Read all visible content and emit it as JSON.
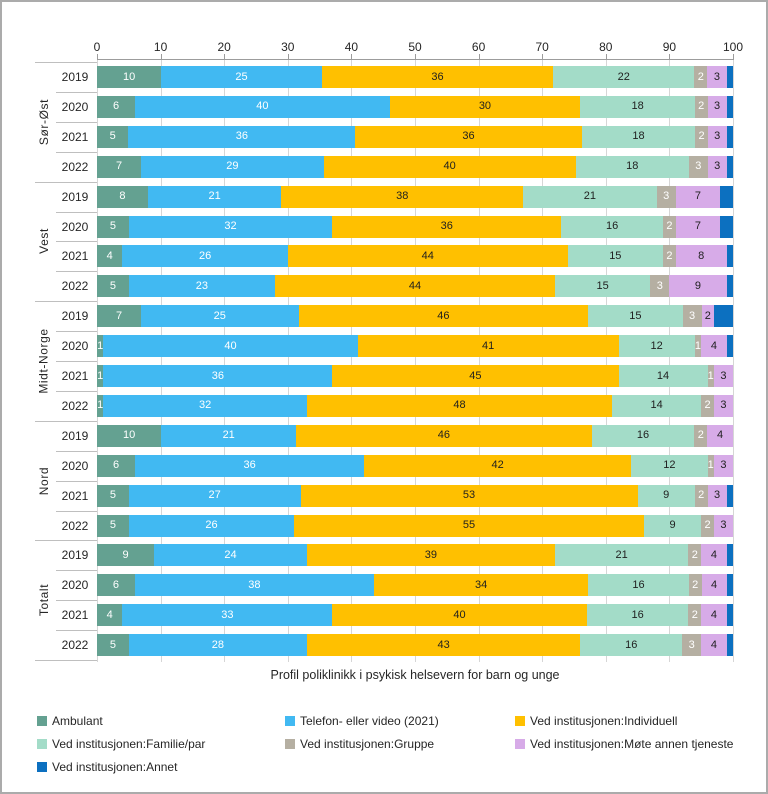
{
  "chart_data": {
    "type": "bar",
    "orientation": "horizontal-stacked",
    "title": "Profil poliklinikk i psykisk helsevern for barn og unge",
    "x_axis": {
      "min": 0,
      "max": 100,
      "step": 10,
      "ticks": [
        0,
        10,
        20,
        30,
        40,
        50,
        60,
        70,
        80,
        90,
        100
      ]
    },
    "grid": true,
    "legend_position": "bottom",
    "series": [
      {
        "name": "Ambulant",
        "color": "#64a191",
        "label_color": "#ffffff",
        "show_labels": true
      },
      {
        "name": "Telefon- eller video (2021)",
        "color": "#41b9f2",
        "label_color": "#ffffff",
        "show_labels": true
      },
      {
        "name": "Ved institusjonen:Individuell",
        "color": "#ffc000",
        "label_color": "#1f1f1f",
        "show_labels": true
      },
      {
        "name": "Ved institusjonen:Familie/par",
        "color": "#a3dcc8",
        "label_color": "#1f1f1f",
        "show_labels": true
      },
      {
        "name": "Ved institusjonen:Gruppe",
        "color": "#b5afa2",
        "label_color": "#ffffff",
        "show_labels": true
      },
      {
        "name": "Ved institusjonen:Møte annen tjeneste",
        "color": "#d7abe8",
        "label_color": "#1f1f1f",
        "show_labels": true
      },
      {
        "name": "Ved institusjonen:Annet",
        "color": "#0c70c0",
        "label_color": "#ffffff",
        "show_labels": false
      }
    ],
    "groups": [
      {
        "label": "Sør-Øst",
        "rows": [
          {
            "year": "2019",
            "values": [
              10,
              25,
              36,
              22,
              2,
              3,
              1
            ]
          },
          {
            "year": "2020",
            "values": [
              6,
              40,
              30,
              18,
              2,
              3,
              1
            ]
          },
          {
            "year": "2021",
            "values": [
              5,
              36,
              36,
              18,
              2,
              3,
              1
            ]
          },
          {
            "year": "2022",
            "values": [
              7,
              29,
              40,
              18,
              3,
              3,
              1
            ]
          }
        ]
      },
      {
        "label": "Vest",
        "rows": [
          {
            "year": "2019",
            "values": [
              8,
              21,
              38,
              21,
              3,
              7,
              2
            ]
          },
          {
            "year": "2020",
            "values": [
              5,
              32,
              36,
              16,
              2,
              7,
              2
            ]
          },
          {
            "year": "2021",
            "values": [
              4,
              26,
              44,
              15,
              2,
              8,
              1
            ]
          },
          {
            "year": "2022",
            "values": [
              5,
              23,
              44,
              15,
              3,
              9,
              1
            ]
          }
        ]
      },
      {
        "label": "Midt-Norge",
        "rows": [
          {
            "year": "2019",
            "values": [
              7,
              25,
              46,
              15,
              3,
              2,
              3
            ]
          },
          {
            "year": "2020",
            "values": [
              1,
              40,
              41,
              12,
              1,
              4,
              1
            ]
          },
          {
            "year": "2021",
            "values": [
              1,
              36,
              45,
              14,
              1,
              3,
              0
            ]
          },
          {
            "year": "2022",
            "values": [
              1,
              32,
              48,
              14,
              2,
              3,
              0
            ]
          }
        ]
      },
      {
        "label": "Nord",
        "rows": [
          {
            "year": "2019",
            "values": [
              10,
              21,
              46,
              16,
              2,
              4,
              0
            ]
          },
          {
            "year": "2020",
            "values": [
              6,
              36,
              42,
              12,
              1,
              3,
              0
            ]
          },
          {
            "year": "2021",
            "values": [
              5,
              27,
              53,
              9,
              2,
              3,
              1
            ]
          },
          {
            "year": "2022",
            "values": [
              5,
              26,
              55,
              9,
              2,
              3,
              0
            ]
          }
        ]
      },
      {
        "label": "Totalt",
        "rows": [
          {
            "year": "2019",
            "values": [
              9,
              24,
              39,
              21,
              2,
              4,
              1
            ]
          },
          {
            "year": "2020",
            "values": [
              6,
              38,
              34,
              16,
              2,
              4,
              1
            ]
          },
          {
            "year": "2021",
            "values": [
              4,
              33,
              40,
              16,
              2,
              4,
              1
            ]
          },
          {
            "year": "2022",
            "values": [
              5,
              28,
              43,
              16,
              3,
              4,
              1
            ]
          }
        ]
      }
    ]
  }
}
